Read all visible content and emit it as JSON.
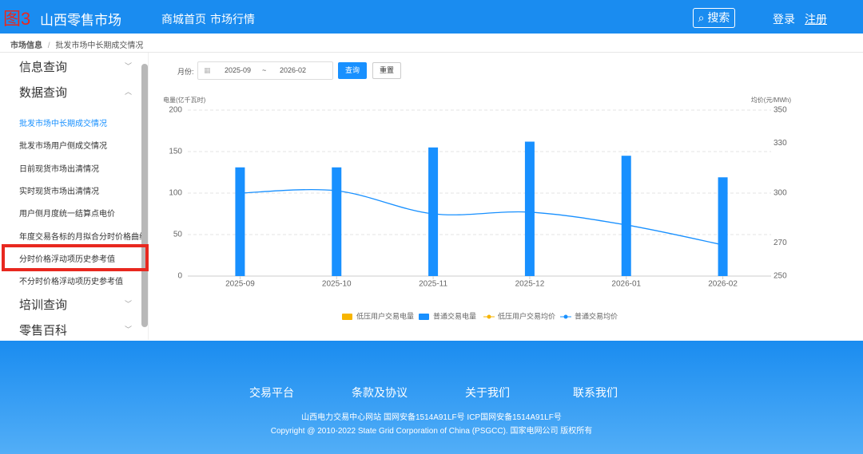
{
  "header": {
    "badge": "图3",
    "title": "山西零售市场",
    "nav": [
      "商城首页",
      "市场行情"
    ],
    "search": "搜索",
    "login": "登录",
    "register": "注册"
  },
  "breadcrumb": [
    "市场信息",
    "/",
    "批发市场中长期成交情况"
  ],
  "sidebar": {
    "groups": [
      "信息查询",
      "数据查询"
    ],
    "items": [
      "批发市场中长期成交情况",
      "批发市场用户侧成交情况",
      "日前现货市场出清情况",
      "实时现货市场出清情况",
      "用户侧月度统一结算点电价",
      "年度交易各标的月拟合分时价格曲线",
      "分时价格浮动项历史参考值",
      "不分时价格浮动项历史参考值"
    ],
    "bottom_groups": [
      "培训查询",
      "零售百科"
    ]
  },
  "filter": {
    "label": "月份:",
    "start": "2025-09",
    "separator": "~",
    "end": "2026-02",
    "query": "查询",
    "reset": "重置"
  },
  "chart_data": {
    "type": "bar",
    "ylabel": "电量(亿千瓦时)",
    "y2label": "均价(元/MWh)",
    "categories": [
      "2025-09",
      "2025-10",
      "2025-11",
      "2025-12",
      "2026-01",
      "2026-02"
    ],
    "series": [
      {
        "name": "低压用户交易电量",
        "type": "bar",
        "color": "#f7b500",
        "values": [
          null,
          null,
          null,
          null,
          null,
          null
        ]
      },
      {
        "name": "普通交易电量",
        "type": "bar",
        "color": "#1890ff",
        "values": [
          131,
          131,
          155,
          162,
          145,
          119
        ]
      },
      {
        "name": "低压用户交易均价",
        "type": "line",
        "axis": "y2",
        "color": "#f7b500",
        "values": [
          null,
          null,
          null,
          null,
          null,
          null
        ]
      },
      {
        "name": "普通交易均价",
        "type": "line",
        "axis": "y2",
        "color": "#1890ff",
        "values": [
          300,
          301.4,
          287.5,
          288.5,
          280.8,
          268.8
        ]
      }
    ],
    "ylim": [
      0,
      200
    ],
    "yticks": [
      0,
      50,
      100,
      150,
      200
    ],
    "y2lim": [
      250,
      350
    ],
    "y2ticks": [
      250,
      270,
      300,
      330,
      350
    ],
    "grid": true,
    "legend": "bottom"
  },
  "footer": {
    "links": [
      "交易平台",
      "条款及协议",
      "关于我们",
      "联系我们"
    ],
    "line1": "山西电力交易中心网站 国网安备1514A91LF号 ICP国网安备1514A91LF号",
    "line2": "Copyright @ 2010-2022 State Grid Corporation of China (PSGCC). 国家电网公司 版权所有"
  }
}
